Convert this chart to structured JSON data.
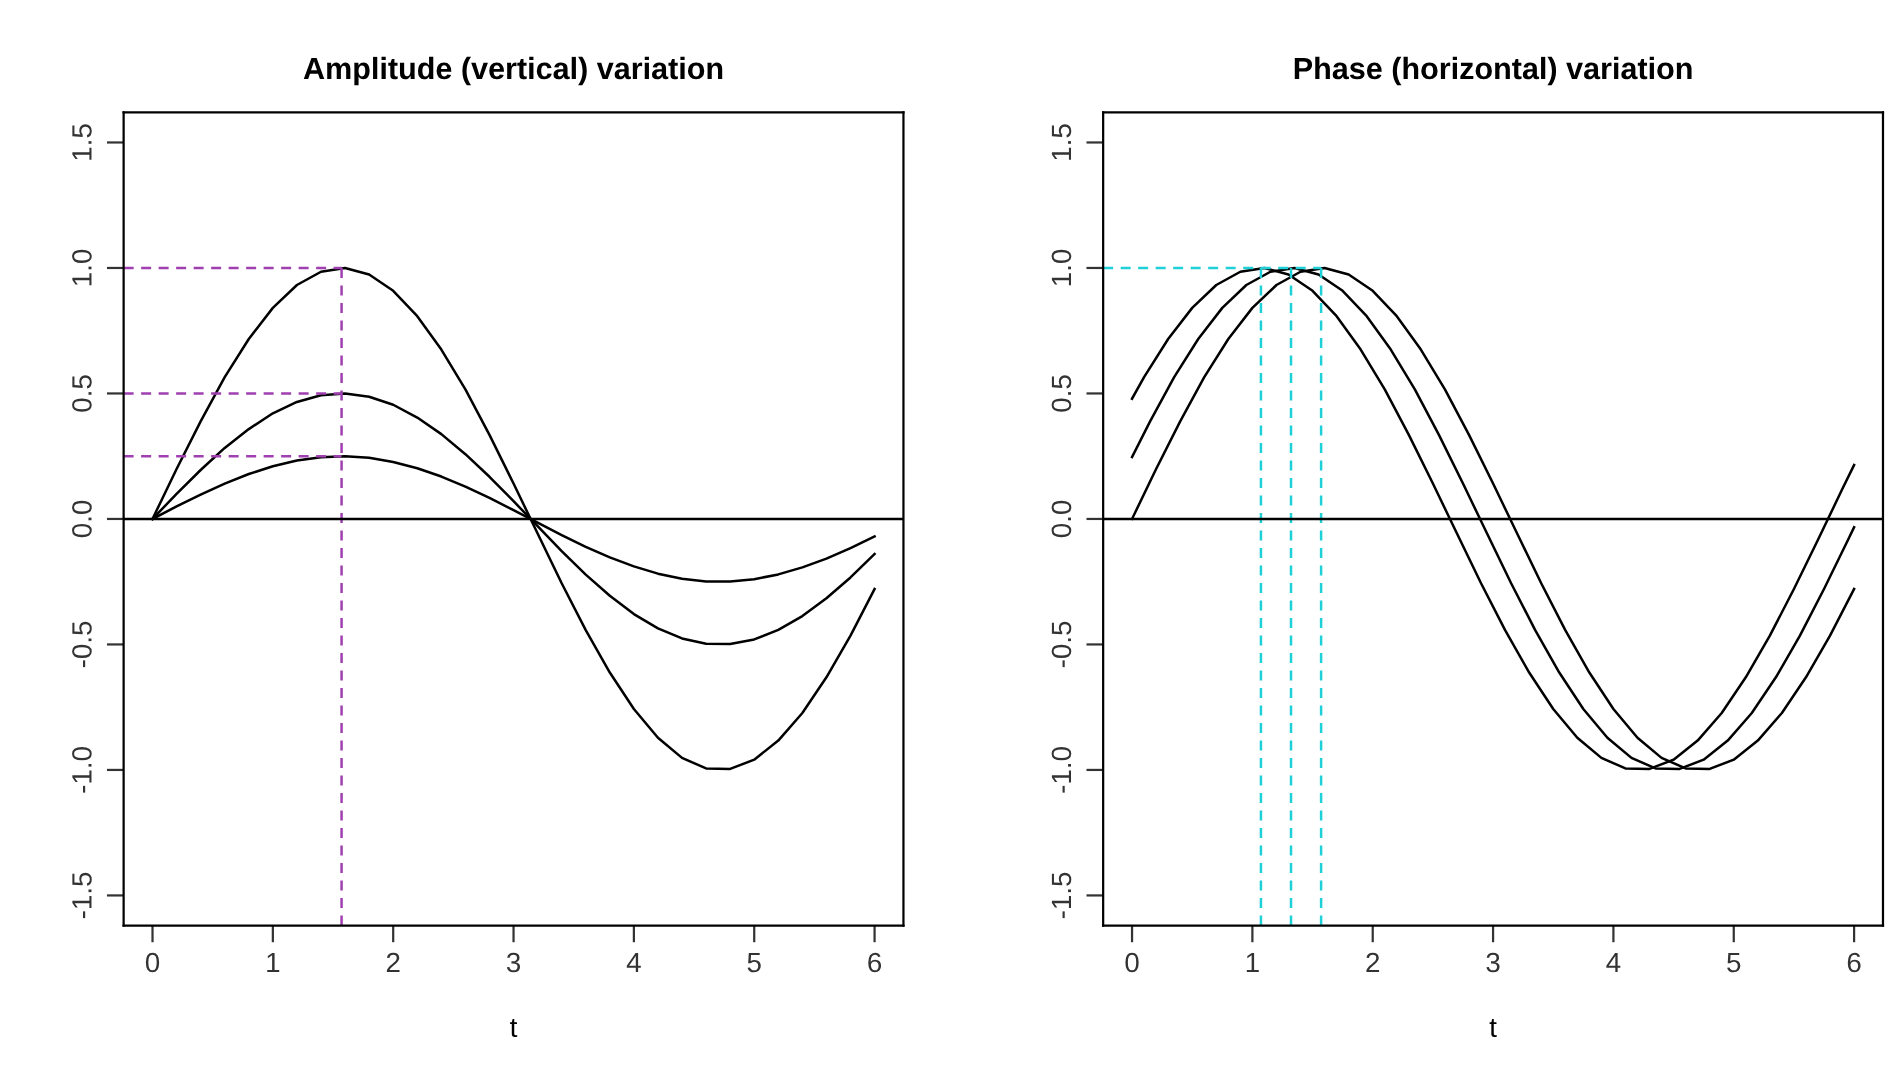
{
  "chart_data": [
    {
      "type": "line",
      "title": "Amplitude (vertical) variation",
      "xlabel": "t",
      "x": [
        0,
        0.2,
        0.4,
        0.6,
        0.8,
        1.0,
        1.2,
        1.4,
        1.6,
        1.8,
        2.0,
        2.2,
        2.4,
        2.6,
        2.8,
        3.0,
        3.2,
        3.4,
        3.6,
        3.8,
        4.0,
        4.2,
        4.4,
        4.6,
        4.8,
        5.0,
        5.2,
        5.4,
        5.6,
        5.8,
        6.0
      ],
      "xlim": [
        -0.24,
        6.24
      ],
      "xticks": [
        0,
        1,
        2,
        3,
        4,
        5,
        6
      ],
      "ylim": [
        -1.62,
        1.62
      ],
      "yticks": [
        -1.5,
        {
          "value": -1,
          "label": "-1.0"
        },
        -0.5,
        {
          "value": 0,
          "label": "0.0"
        },
        0.5,
        {
          "value": 1,
          "label": "1.0"
        },
        1.5
      ],
      "grid": false,
      "legend": false,
      "marker": "none",
      "line_style": "solid",
      "ref_lines": [
        {
          "axis": "y",
          "value": 0,
          "color": "#000000",
          "line_style": "solid"
        }
      ],
      "series": [
        {
          "color": "#000000",
          "values": [
            0,
            0.199,
            0.389,
            0.565,
            0.717,
            0.841,
            0.932,
            0.985,
            1.0,
            0.974,
            0.909,
            0.808,
            0.675,
            0.516,
            0.335,
            0.141,
            -0.058,
            -0.256,
            -0.443,
            -0.612,
            -0.757,
            -0.872,
            -0.952,
            -0.994,
            -0.996,
            -0.959,
            -0.883,
            -0.773,
            -0.631,
            -0.465,
            -0.279
          ]
        },
        {
          "color": "#000000",
          "values": [
            0,
            0.1,
            0.195,
            0.283,
            0.358,
            0.421,
            0.466,
            0.493,
            0.5,
            0.487,
            0.455,
            0.404,
            0.338,
            0.258,
            0.168,
            0.071,
            -0.029,
            -0.128,
            -0.222,
            -0.306,
            -0.379,
            -0.436,
            -0.476,
            -0.497,
            -0.498,
            -0.48,
            -0.442,
            -0.387,
            -0.316,
            -0.233,
            -0.14
          ]
        },
        {
          "color": "#000000",
          "values": [
            0,
            0.05,
            0.097,
            0.141,
            0.179,
            0.21,
            0.233,
            0.246,
            0.25,
            0.244,
            0.227,
            0.202,
            0.169,
            0.129,
            0.084,
            0.035,
            -0.015,
            -0.064,
            -0.111,
            -0.153,
            -0.189,
            -0.218,
            -0.238,
            -0.249,
            -0.249,
            -0.24,
            -0.221,
            -0.193,
            -0.158,
            -0.116,
            -0.07
          ]
        },
        {
          "color": "#a040b0",
          "line_style": "dashed",
          "x": [
            -0.24,
            1.571
          ],
          "values": [
            1,
            1
          ]
        },
        {
          "color": "#a040b0",
          "line_style": "dashed",
          "x": [
            -0.24,
            1.571
          ],
          "values": [
            0.5,
            0.5
          ]
        },
        {
          "color": "#a040b0",
          "line_style": "dashed",
          "x": [
            -0.24,
            1.571
          ],
          "values": [
            0.25,
            0.25
          ]
        },
        {
          "color": "#a040b0",
          "line_style": "dashed",
          "x": [
            1.571,
            1.571
          ],
          "values": [
            -1.62,
            1
          ]
        }
      ]
    },
    {
      "type": "line",
      "title": "Phase (horizontal) variation",
      "xlabel": "t",
      "x": [
        0,
        0.2,
        0.4,
        0.6,
        0.8,
        1.0,
        1.2,
        1.4,
        1.6,
        1.8,
        2.0,
        2.2,
        2.4,
        2.6,
        2.8,
        3.0,
        3.2,
        3.4,
        3.6,
        3.8,
        4.0,
        4.2,
        4.4,
        4.6,
        4.8,
        5.0,
        5.2,
        5.4,
        5.6,
        5.8,
        6.0
      ],
      "xlim": [
        -0.24,
        6.24
      ],
      "xticks": [
        0,
        1,
        2,
        3,
        4,
        5,
        6
      ],
      "ylim": [
        -1.62,
        1.62
      ],
      "yticks": [
        -1.5,
        {
          "value": -1,
          "label": "-1.0"
        },
        -0.5,
        {
          "value": 0,
          "label": "0.0"
        },
        0.5,
        {
          "value": 1,
          "label": "1.0"
        },
        1.5
      ],
      "grid": false,
      "legend": false,
      "marker": "none",
      "line_style": "solid",
      "ref_lines": [
        {
          "axis": "y",
          "value": 0,
          "color": "#000000",
          "line_style": "solid"
        }
      ],
      "series": [
        {
          "color": "#000000",
          "values": [
            0,
            0.199,
            0.389,
            0.565,
            0.717,
            0.841,
            0.932,
            0.985,
            1.0,
            0.974,
            0.909,
            0.808,
            0.675,
            0.516,
            0.335,
            0.141,
            -0.058,
            -0.256,
            -0.443,
            -0.612,
            -0.757,
            -0.872,
            -0.952,
            -0.994,
            -0.996,
            -0.959,
            -0.883,
            -0.773,
            -0.631,
            -0.465,
            -0.279
          ]
        },
        {
          "color": "#000000",
          "x": [
            0,
            0.15,
            0.35,
            0.55,
            0.75,
            0.95,
            1.15,
            1.35,
            1.55,
            1.75,
            1.95,
            2.15,
            2.35,
            2.55,
            2.75,
            2.95,
            3.15,
            3.35,
            3.55,
            3.75,
            3.95,
            4.15,
            4.35,
            4.55,
            4.75,
            4.95,
            5.15,
            5.35,
            5.55,
            5.75,
            5.95,
            6.0
          ],
          "values": [
            0.247,
            0.389,
            0.565,
            0.717,
            0.841,
            0.932,
            0.985,
            1.0,
            0.974,
            0.909,
            0.808,
            0.675,
            0.516,
            0.335,
            0.141,
            -0.058,
            -0.256,
            -0.443,
            -0.612,
            -0.757,
            -0.872,
            -0.952,
            -0.994,
            -0.996,
            -0.959,
            -0.883,
            -0.773,
            -0.631,
            -0.465,
            -0.279,
            -0.083,
            -0.033
          ]
        },
        {
          "color": "#000000",
          "x": [
            0,
            0.1,
            0.3,
            0.5,
            0.7,
            0.9,
            1.1,
            1.3,
            1.5,
            1.7,
            1.9,
            2.1,
            2.3,
            2.5,
            2.7,
            2.9,
            3.1,
            3.3,
            3.5,
            3.7,
            3.9,
            4.1,
            4.3,
            4.5,
            4.7,
            4.9,
            5.1,
            5.3,
            5.5,
            5.7,
            5.9,
            6.0
          ],
          "values": [
            0.479,
            0.565,
            0.717,
            0.841,
            0.932,
            0.985,
            1.0,
            0.974,
            0.909,
            0.808,
            0.675,
            0.516,
            0.335,
            0.141,
            -0.058,
            -0.256,
            -0.443,
            -0.612,
            -0.757,
            -0.872,
            -0.952,
            -0.994,
            -0.996,
            -0.959,
            -0.883,
            -0.773,
            -0.631,
            -0.465,
            -0.279,
            -0.083,
            0.117,
            0.215
          ]
        },
        {
          "color": "#20d0d8",
          "line_style": "dashed",
          "x": [
            -0.24,
            1.571
          ],
          "values": [
            1,
            1
          ]
        },
        {
          "color": "#20d0d8",
          "line_style": "dashed",
          "x": [
            1.071,
            1.071
          ],
          "values": [
            -1.62,
            1
          ]
        },
        {
          "color": "#20d0d8",
          "line_style": "dashed",
          "x": [
            1.321,
            1.321
          ],
          "values": [
            -1.62,
            1
          ]
        },
        {
          "color": "#20d0d8",
          "line_style": "dashed",
          "x": [
            1.571,
            1.571
          ],
          "values": [
            -1.62,
            1
          ]
        }
      ]
    }
  ]
}
